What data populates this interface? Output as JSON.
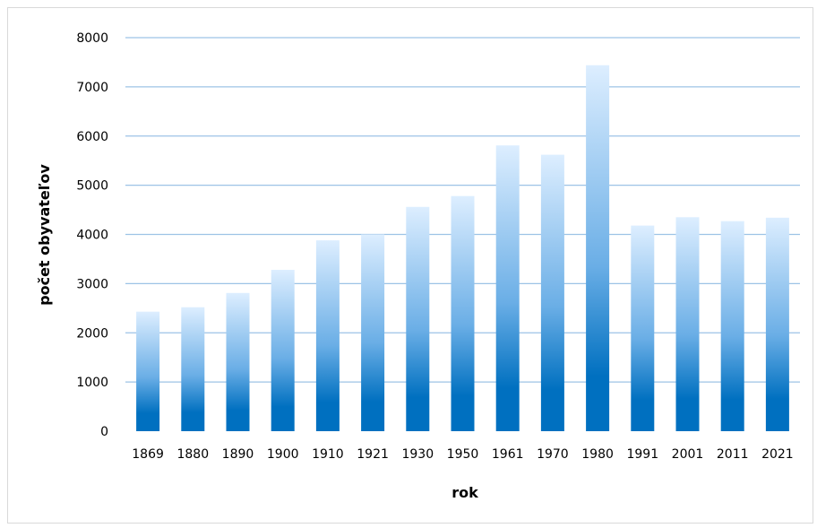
{
  "chart_data": {
    "type": "bar",
    "title": "",
    "xlabel": "rok",
    "ylabel": "počet obyvateľov",
    "categories": [
      "1869",
      "1880",
      "1890",
      "1900",
      "1910",
      "1921",
      "1930",
      "1950",
      "1961",
      "1970",
      "1980",
      "1991",
      "2001",
      "2011",
      "2021"
    ],
    "values": [
      2430,
      2520,
      2810,
      3280,
      3880,
      4000,
      4560,
      4780,
      5810,
      5620,
      7440,
      4180,
      4350,
      4270,
      4340
    ],
    "ylim": [
      0,
      8000
    ],
    "yticks": [
      "0",
      "1000",
      "2000",
      "3000",
      "4000",
      "5000",
      "6000",
      "7000",
      "8000"
    ],
    "grid": true,
    "legend": "none",
    "colors": {
      "bar_top": "#ddeeff",
      "bar_bottom": "#0070c0",
      "grid": "#9dc3e6"
    }
  }
}
